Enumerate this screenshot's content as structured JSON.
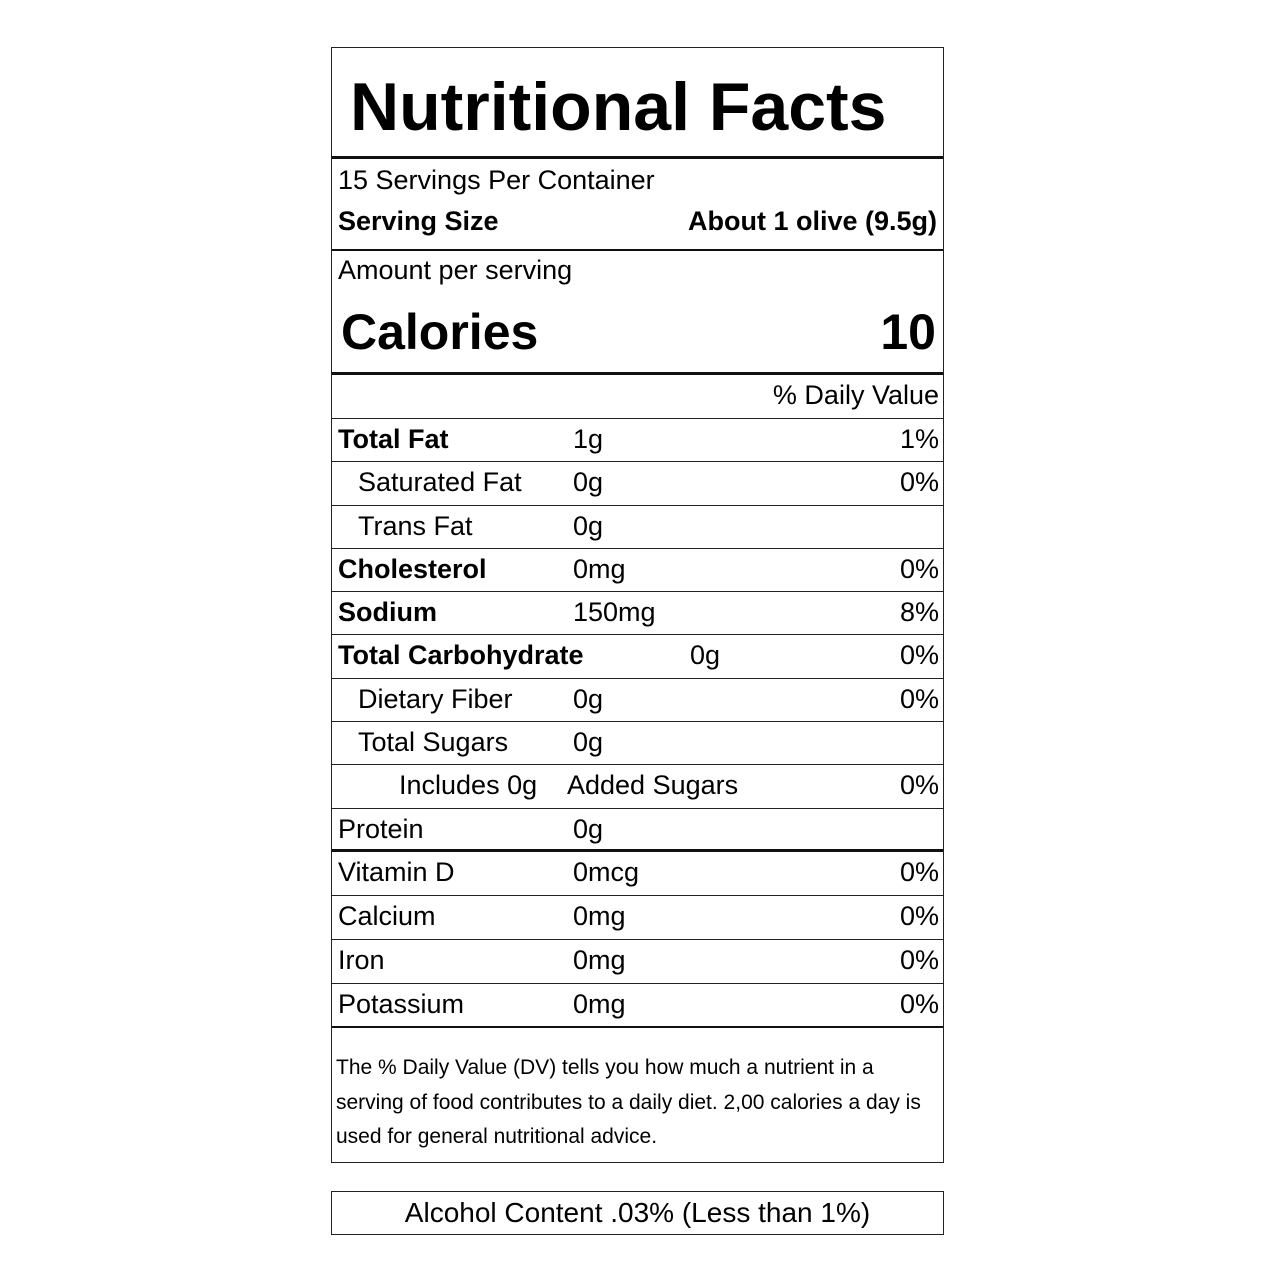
{
  "title": "Nutritional Facts",
  "servings_per_container": "15 Servings Per Container",
  "serving_size": {
    "label": "Serving Size",
    "value": "About 1 olive (9.5g)"
  },
  "amount_per_serving": "Amount per serving",
  "calories": {
    "label": "Calories",
    "value": "10"
  },
  "daily_value_header": "% Daily Value",
  "nutrients": [
    {
      "name": "Total Fat",
      "amount": "1g",
      "dv": "1%",
      "bold": true,
      "indent": 0
    },
    {
      "name": "Saturated Fat",
      "amount": "0g",
      "dv": "0%",
      "bold": false,
      "indent": 1
    },
    {
      "name": "Trans Fat",
      "amount": "0g",
      "dv": "",
      "bold": false,
      "indent": 1
    },
    {
      "name": "Cholesterol",
      "amount": "0mg",
      "dv": "0%",
      "bold": true,
      "indent": 0
    },
    {
      "name": "Sodium",
      "amount": "150mg",
      "dv": "8%",
      "bold": true,
      "indent": 0
    },
    {
      "name": "Total Carbohydrate",
      "amount": "0g",
      "dv": "0%",
      "bold": true,
      "indent": 0
    },
    {
      "name": "Dietary Fiber",
      "amount": "0g",
      "dv": "0%",
      "bold": false,
      "indent": 1
    },
    {
      "name": "Total Sugars",
      "amount": "0g",
      "dv": "",
      "bold": false,
      "indent": 1
    },
    {
      "name": "Includes 0g",
      "amount": "Added Sugars",
      "dv": "0%",
      "bold": false,
      "indent": 2
    },
    {
      "name": "Protein",
      "amount": "0g",
      "dv": "",
      "bold": false,
      "indent": 0
    }
  ],
  "vitamins": [
    {
      "name": "Vitamin D",
      "amount": "0mcg",
      "dv": "0%"
    },
    {
      "name": "Calcium",
      "amount": "0mg",
      "dv": "0%"
    },
    {
      "name": "Iron",
      "amount": "0mg",
      "dv": "0%"
    },
    {
      "name": "Potassium",
      "amount": "0mg",
      "dv": "0%"
    }
  ],
  "footnote": "The % Daily Value (DV) tells you how much a nutrient in a serving of food contributes to a daily diet.  2,00 calories a day is used for general nutritional advice.",
  "alcohol": "Alcohol Content .03% (Less than 1%)"
}
